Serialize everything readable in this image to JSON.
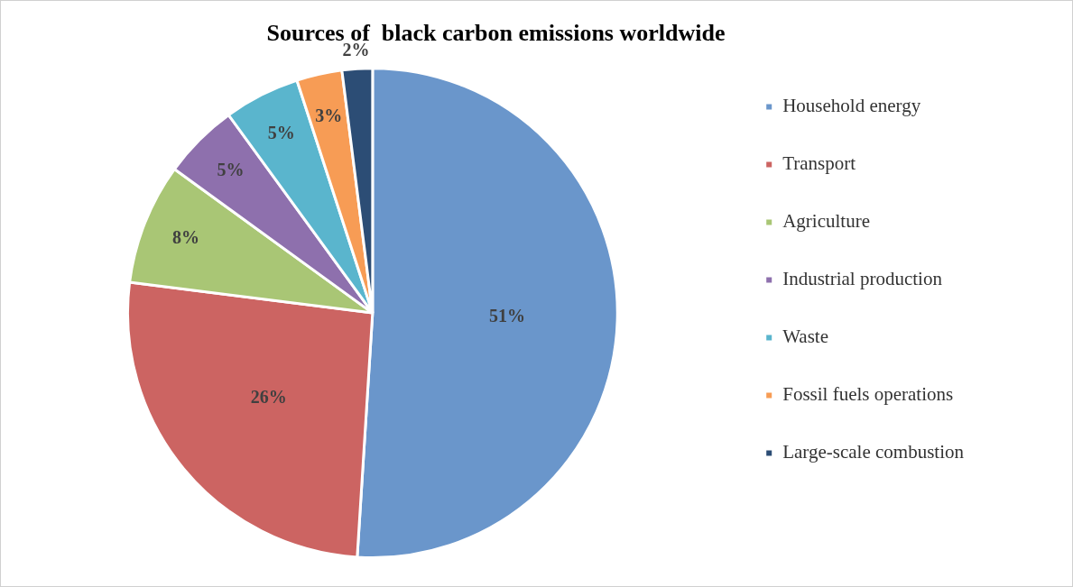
{
  "chart_data": {
    "type": "pie",
    "title": "Sources of  black carbon emissions worldwide",
    "categories": [
      "Household energy",
      "Transport",
      "Agriculture",
      "Industrial production",
      "Waste",
      "Fossil fuels operations",
      "Large-scale combustion"
    ],
    "values": [
      51,
      26,
      8,
      5,
      5,
      3,
      2
    ],
    "colors": [
      "#6a96cb",
      "#cc6462",
      "#a9c675",
      "#8e70ad",
      "#5ab5cd",
      "#f79c55",
      "#2c4d75"
    ],
    "value_labels": [
      "51%",
      "26%",
      "8%",
      "5%",
      "5%",
      "3%",
      "2%"
    ],
    "legend": "right"
  }
}
